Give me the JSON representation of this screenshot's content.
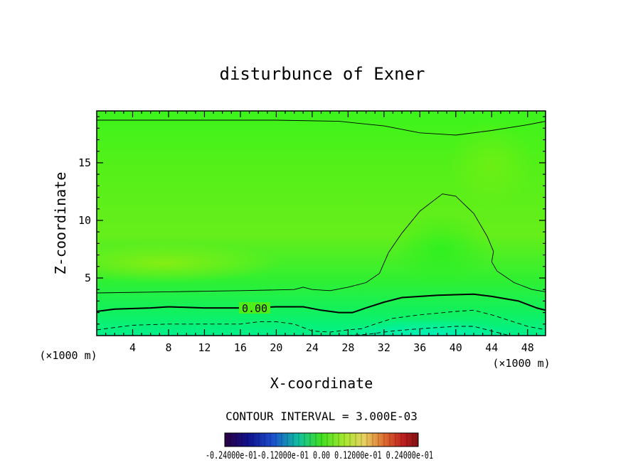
{
  "chart_data": {
    "type": "contour",
    "title": "disturbunce of Exner",
    "xlabel": "X-coordinate",
    "ylabel": "Z-coordinate",
    "x_unit_left": "(×1000 m)",
    "x_unit_right": "(×1000 m)",
    "xlim": [
      0,
      50
    ],
    "ylim": [
      0,
      19.5
    ],
    "xticks": [
      4,
      8,
      12,
      16,
      20,
      24,
      28,
      32,
      36,
      40,
      44,
      48
    ],
    "yticks": [
      5,
      10,
      15
    ],
    "contour_interval_text": "CONTOUR INTERVAL = 3.000E-03",
    "contour_label": "0.00",
    "colorbar_labels": [
      "-0.24000e-01",
      "-0.12000e-01",
      "0.00",
      "0.12000e-01",
      "0.24000e-01"
    ],
    "colorbar_label_text": "-0.24000e-01-0.12000e-01 0.00  0.12000e-01 0.24000e-01",
    "contours": [
      {
        "level": 0.006,
        "style": "thin-solid",
        "points": [
          [
            0,
            18.7
          ],
          [
            10,
            18.7
          ],
          [
            20,
            18.7
          ],
          [
            27,
            18.6
          ],
          [
            32,
            18.2
          ],
          [
            36,
            17.6
          ],
          [
            40,
            17.4
          ],
          [
            44,
            17.8
          ],
          [
            48,
            18.3
          ],
          [
            50,
            18.6
          ]
        ]
      },
      {
        "level": 0.003,
        "style": "thin-solid",
        "points": [
          [
            0,
            3.7
          ],
          [
            8,
            3.8
          ],
          [
            16,
            3.9
          ],
          [
            22,
            4.0
          ],
          [
            23,
            4.2
          ],
          [
            24,
            4.0
          ],
          [
            26,
            3.9
          ],
          [
            28,
            4.2
          ],
          [
            30,
            4.6
          ],
          [
            31.5,
            5.4
          ],
          [
            32.5,
            7.2
          ],
          [
            34,
            8.9
          ],
          [
            36,
            10.8
          ],
          [
            38.5,
            12.3
          ],
          [
            40,
            12.1
          ],
          [
            42,
            10.6
          ],
          [
            43.5,
            8.6
          ],
          [
            44.2,
            7.3
          ],
          [
            44,
            6.4
          ],
          [
            44.6,
            5.6
          ],
          [
            46.5,
            4.6
          ],
          [
            48.5,
            4.0
          ],
          [
            50,
            3.8
          ]
        ]
      },
      {
        "level": 0.0,
        "style": "thick-solid",
        "points": [
          [
            0,
            2.1
          ],
          [
            2,
            2.3
          ],
          [
            6,
            2.4
          ],
          [
            8,
            2.5
          ],
          [
            12,
            2.4
          ],
          [
            16,
            2.4
          ],
          [
            20,
            2.5
          ],
          [
            23,
            2.5
          ],
          [
            25,
            2.2
          ],
          [
            27,
            2.0
          ],
          [
            28.5,
            2.0
          ],
          [
            30,
            2.4
          ],
          [
            32,
            2.9
          ],
          [
            34,
            3.3
          ],
          [
            38,
            3.5
          ],
          [
            42,
            3.6
          ],
          [
            44,
            3.4
          ],
          [
            47,
            3.0
          ],
          [
            49,
            2.4
          ],
          [
            50,
            2.2
          ]
        ]
      },
      {
        "level": -0.003,
        "style": "dashed",
        "points": [
          [
            0,
            0.5
          ],
          [
            4,
            0.9
          ],
          [
            8,
            1.0
          ],
          [
            12,
            1.0
          ],
          [
            16,
            1.0
          ],
          [
            18,
            1.2
          ],
          [
            20,
            1.2
          ],
          [
            22,
            1.0
          ],
          [
            24,
            0.4
          ],
          [
            26,
            0.3
          ],
          [
            28,
            0.5
          ],
          [
            29.5,
            0.6
          ],
          [
            31,
            1.0
          ],
          [
            33,
            1.5
          ],
          [
            36,
            1.8
          ],
          [
            40,
            2.1
          ],
          [
            42,
            2.2
          ],
          [
            44,
            1.8
          ],
          [
            46,
            1.3
          ],
          [
            48,
            0.8
          ],
          [
            50,
            0.5
          ]
        ]
      },
      {
        "level": -0.006,
        "style": "dashed",
        "points": [
          [
            28,
            0.0
          ],
          [
            30,
            0.1
          ],
          [
            33,
            0.4
          ],
          [
            36,
            0.6
          ],
          [
            40,
            0.8
          ],
          [
            42,
            0.8
          ],
          [
            44,
            0.4
          ],
          [
            46,
            0.0
          ]
        ]
      }
    ]
  }
}
